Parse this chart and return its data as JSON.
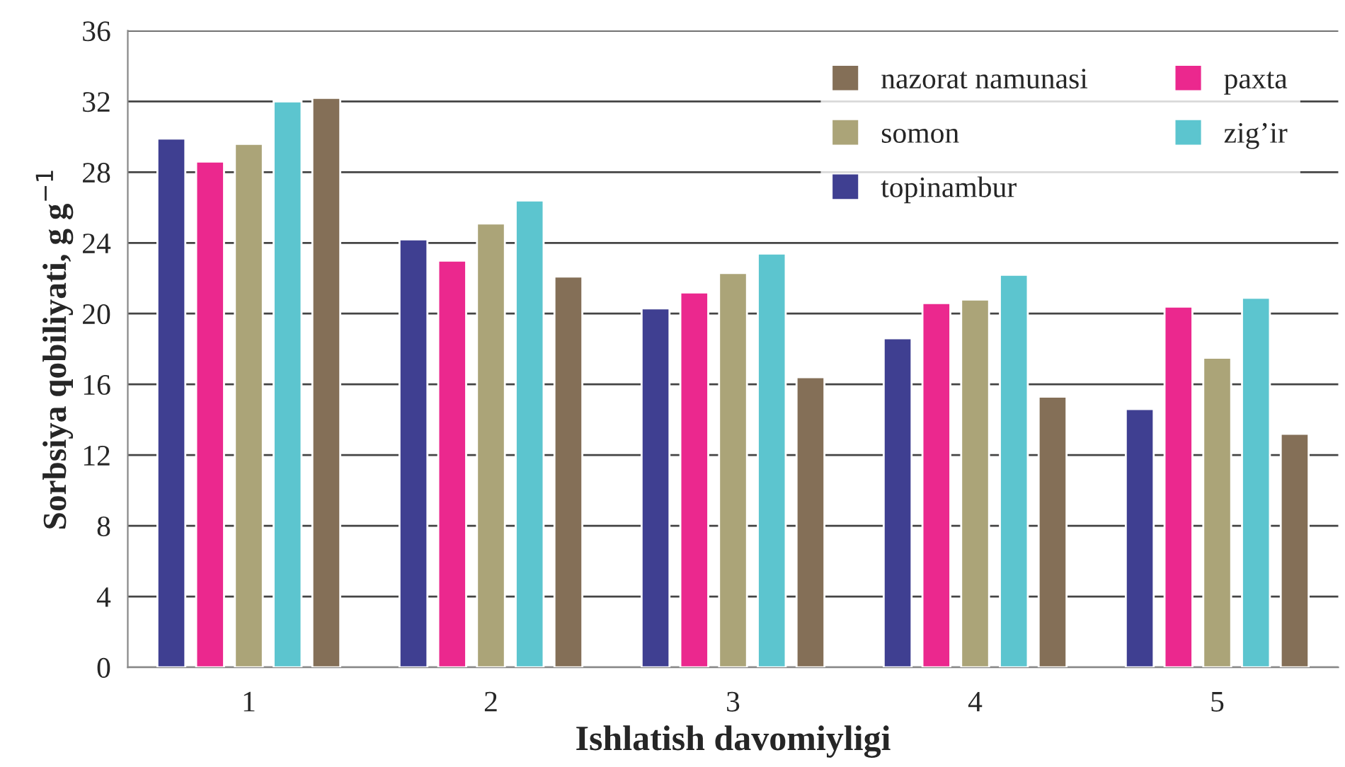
{
  "chart_data": {
    "type": "bar",
    "xlabel": "Ishlatish davomiyligi",
    "ylabel": "Sorbsiya qobiliyati, g g$^{−1}$",
    "categories": [
      "1",
      "2",
      "3",
      "4",
      "5"
    ],
    "series": [
      {
        "name": "topinambur",
        "color": "#3f3f91",
        "values": [
          29.9,
          24.2,
          20.3,
          18.6,
          14.6
        ]
      },
      {
        "name": "paxta",
        "color": "#eb288e",
        "values": [
          28.6,
          23.0,
          21.2,
          20.6,
          20.4
        ]
      },
      {
        "name": "somon",
        "color": "#aba478",
        "values": [
          29.6,
          25.1,
          22.3,
          20.8,
          17.5
        ]
      },
      {
        "name": "zig’ir",
        "color": "#5cc5cf",
        "values": [
          32.0,
          26.4,
          23.4,
          22.2,
          20.9
        ]
      },
      {
        "name": "nazorat namunasi",
        "color": "#846f57",
        "values": [
          32.2,
          22.1,
          16.4,
          15.3,
          13.2
        ]
      }
    ],
    "ylim": [
      0,
      36
    ],
    "yticks": [
      0,
      4,
      8,
      12,
      16,
      20,
      24,
      28,
      32,
      36
    ],
    "grid": "y",
    "legend": "top right"
  }
}
